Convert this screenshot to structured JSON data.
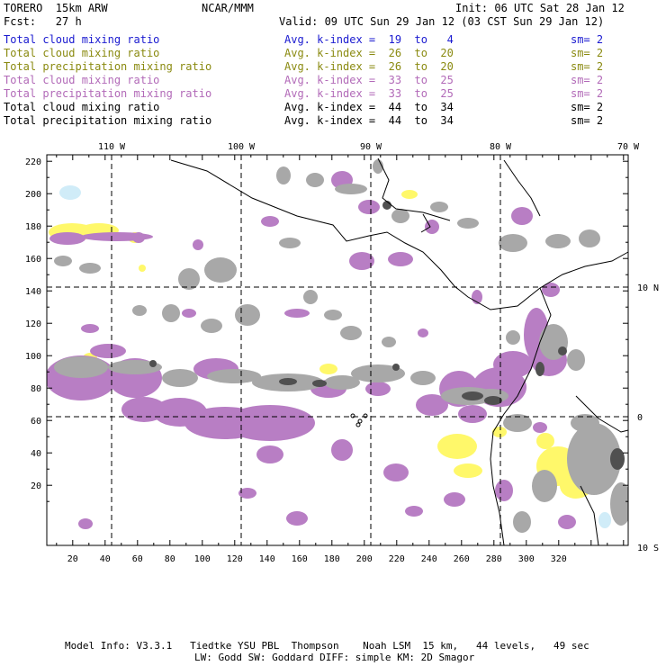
{
  "header": {
    "model": "TORERO  15km ARW",
    "center": "NCAR/MMM",
    "init": "Init: 06 UTC Sat 28 Jan 12",
    "fcst": "Fcst:   27 h",
    "valid": "Valid: 09 UTC Sun 29 Jan 12 (03 CST Sun 29 Jan 12)"
  },
  "legend": [
    {
      "field": "Total cloud mixing ratio",
      "kindex": "Avg. k-index =  19  to   4",
      "sm": "sm= 2",
      "color": "#1a1ad0"
    },
    {
      "field": "Total cloud mixing ratio",
      "kindex": "Avg. k-index =  26  to  20",
      "sm": "sm= 2",
      "color": "#8a8a10"
    },
    {
      "field": "Total precipitation mixing ratio",
      "kindex": "Avg. k-index =  26  to  20",
      "sm": "sm= 2",
      "color": "#8a8a10"
    },
    {
      "field": "Total cloud mixing ratio",
      "kindex": "Avg. k-index =  33  to  25",
      "sm": "sm= 2",
      "color": "#b26ab8"
    },
    {
      "field": "Total precipitation mixing ratio",
      "kindex": "Avg. k-index =  33  to  25",
      "sm": "sm= 2",
      "color": "#b26ab8"
    },
    {
      "field": "Total cloud mixing ratio",
      "kindex": "Avg. k-index =  44  to  34",
      "sm": "sm= 2",
      "color": "#000000"
    },
    {
      "field": "Total precipitation mixing ratio",
      "kindex": "Avg. k-index =  44  to  34",
      "sm": "sm= 2",
      "color": "#000000"
    }
  ],
  "axes": {
    "top_lon_labels": [
      "110 W",
      "100 W",
      "90 W",
      "80 W",
      "70 W"
    ],
    "right_lat_labels": [
      "10 N",
      "0",
      "10 S"
    ],
    "x_ticks": [
      "20",
      "40",
      "60",
      "80",
      "100",
      "120",
      "140",
      "160",
      "180",
      "200",
      "220",
      "240",
      "260",
      "280",
      "300",
      "320"
    ],
    "y_ticks": [
      "220",
      "200",
      "180",
      "160",
      "140",
      "120",
      "100",
      "80",
      "60",
      "40",
      "20"
    ]
  },
  "footer": {
    "line1": "Model Info: V3.3.1   Tiedtke YSU PBL  Thompson    Noah LSM  15 km,   44 levels,   49 sec",
    "line2": "LW: Godd SW: Goddard DIFF: simple KM: 2D Smagor"
  },
  "colors": {
    "magenta": "#b87ec4",
    "gray": "#a8a8a8",
    "darkgray": "#505050",
    "yellow": "#fff86a",
    "cyan": "#d0ecf8"
  }
}
